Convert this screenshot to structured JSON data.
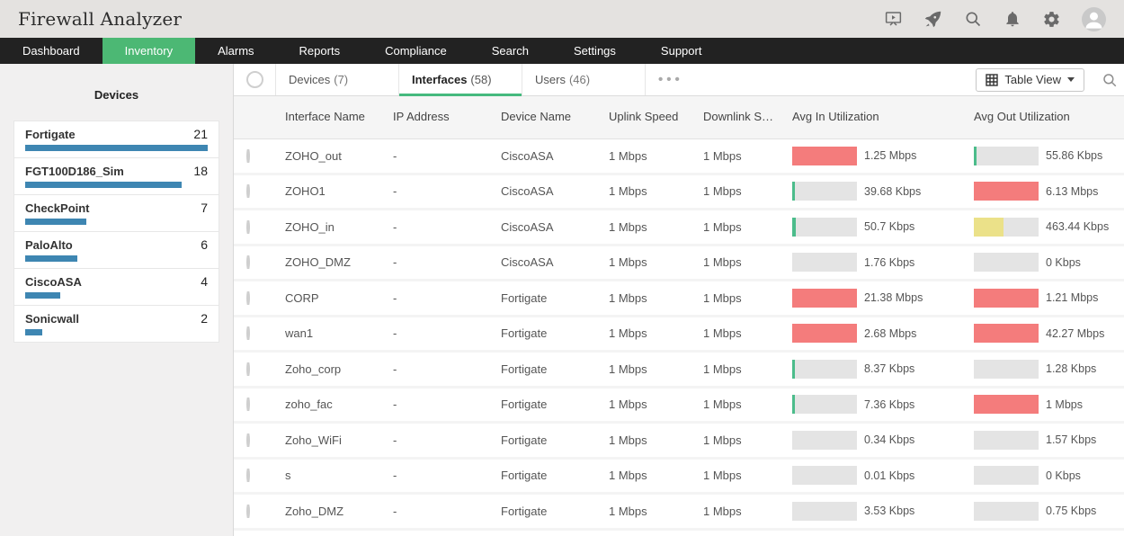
{
  "header": {
    "title": "Firewall Analyzer",
    "icons": [
      "presentation-icon",
      "rocket-icon",
      "search-icon",
      "bell-icon",
      "gear-icon",
      "avatar"
    ]
  },
  "nav": {
    "items": [
      {
        "label": "Dashboard",
        "active": false
      },
      {
        "label": "Inventory",
        "active": true
      },
      {
        "label": "Alarms",
        "active": false
      },
      {
        "label": "Reports",
        "active": false
      },
      {
        "label": "Compliance",
        "active": false
      },
      {
        "label": "Search",
        "active": false
      },
      {
        "label": "Settings",
        "active": false
      },
      {
        "label": "Support",
        "active": false
      }
    ]
  },
  "sidebar": {
    "title": "Devices",
    "max_count": 21,
    "items": [
      {
        "name": "Fortigate",
        "count": 21
      },
      {
        "name": "FGT100D186_Sim",
        "count": 18
      },
      {
        "name": "CheckPoint",
        "count": 7
      },
      {
        "name": "PaloAlto",
        "count": 6
      },
      {
        "name": "CiscoASA",
        "count": 4
      },
      {
        "name": "Sonicwall",
        "count": 2
      }
    ]
  },
  "tabbar": {
    "tabs": [
      {
        "label": "Devices",
        "count": "(7)",
        "active": false
      },
      {
        "label": "Interfaces",
        "count": "(58)",
        "active": true
      },
      {
        "label": "Users",
        "count": "(46)",
        "active": false
      }
    ],
    "more_label": "•••",
    "view_button": "Table View"
  },
  "table": {
    "columns": [
      "Interface Name",
      "IP Address",
      "Device Name",
      "Uplink Speed",
      "Downlink Speed",
      "Avg In Utilization",
      "Avg Out Utilization"
    ],
    "rows": [
      {
        "name": "ZOHO_out",
        "ip": "-",
        "device": "CiscoASA",
        "uplink": "1 Mbps",
        "downlink": "1 Mbps",
        "avg_in": {
          "value": "1.25 Mbps",
          "color": "red",
          "pct": 100
        },
        "avg_out": {
          "value": "55.86 Kbps",
          "color": "green",
          "pct": 4
        }
      },
      {
        "name": "ZOHO1",
        "ip": "-",
        "device": "CiscoASA",
        "uplink": "1 Mbps",
        "downlink": "1 Mbps",
        "avg_in": {
          "value": "39.68 Kbps",
          "color": "green",
          "pct": 4
        },
        "avg_out": {
          "value": "6.13 Mbps",
          "color": "red",
          "pct": 100
        }
      },
      {
        "name": "ZOHO_in",
        "ip": "-",
        "device": "CiscoASA",
        "uplink": "1 Mbps",
        "downlink": "1 Mbps",
        "avg_in": {
          "value": "50.7 Kbps",
          "color": "green",
          "pct": 5
        },
        "avg_out": {
          "value": "463.44 Kbps",
          "color": "yellow",
          "pct": 46
        }
      },
      {
        "name": "ZOHO_DMZ",
        "ip": "-",
        "device": "CiscoASA",
        "uplink": "1 Mbps",
        "downlink": "1 Mbps",
        "avg_in": {
          "value": "1.76 Kbps",
          "color": "none",
          "pct": 0
        },
        "avg_out": {
          "value": "0 Kbps",
          "color": "none",
          "pct": 0
        }
      },
      {
        "name": "CORP",
        "ip": "-",
        "device": "Fortigate",
        "uplink": "1 Mbps",
        "downlink": "1 Mbps",
        "avg_in": {
          "value": "21.38 Mbps",
          "color": "red",
          "pct": 100
        },
        "avg_out": {
          "value": "1.21 Mbps",
          "color": "red",
          "pct": 100
        }
      },
      {
        "name": "wan1",
        "ip": "-",
        "device": "Fortigate",
        "uplink": "1 Mbps",
        "downlink": "1 Mbps",
        "avg_in": {
          "value": "2.68 Mbps",
          "color": "red",
          "pct": 100
        },
        "avg_out": {
          "value": "42.27 Mbps",
          "color": "red",
          "pct": 100
        }
      },
      {
        "name": "Zoho_corp",
        "ip": "-",
        "device": "Fortigate",
        "uplink": "1 Mbps",
        "downlink": "1 Mbps",
        "avg_in": {
          "value": "8.37 Kbps",
          "color": "green",
          "pct": 3
        },
        "avg_out": {
          "value": "1.28 Kbps",
          "color": "none",
          "pct": 0
        }
      },
      {
        "name": "zoho_fac",
        "ip": "-",
        "device": "Fortigate",
        "uplink": "1 Mbps",
        "downlink": "1 Mbps",
        "avg_in": {
          "value": "7.36 Kbps",
          "color": "green",
          "pct": 3
        },
        "avg_out": {
          "value": "1 Mbps",
          "color": "red",
          "pct": 100
        }
      },
      {
        "name": "Zoho_WiFi",
        "ip": "-",
        "device": "Fortigate",
        "uplink": "1 Mbps",
        "downlink": "1 Mbps",
        "avg_in": {
          "value": "0.34 Kbps",
          "color": "none",
          "pct": 0
        },
        "avg_out": {
          "value": "1.57 Kbps",
          "color": "none",
          "pct": 0
        }
      },
      {
        "name": "s",
        "ip": "-",
        "device": "Fortigate",
        "uplink": "1 Mbps",
        "downlink": "1 Mbps",
        "avg_in": {
          "value": "0.01 Kbps",
          "color": "none",
          "pct": 0
        },
        "avg_out": {
          "value": "0 Kbps",
          "color": "none",
          "pct": 0
        }
      },
      {
        "name": "Zoho_DMZ",
        "ip": "-",
        "device": "Fortigate",
        "uplink": "1 Mbps",
        "downlink": "1 Mbps",
        "avg_in": {
          "value": "3.53 Kbps",
          "color": "none",
          "pct": 0
        },
        "avg_out": {
          "value": "0.75 Kbps",
          "color": "none",
          "pct": 0
        }
      }
    ]
  },
  "colors": {
    "accent_green": "#4cb874",
    "tab_underline_green": "#45b97e",
    "bar_red": "#f47c7c",
    "bar_yellow": "#ebe189",
    "bar_green": "#4cbc8b",
    "sidebar_bar_blue": "#3e86b2",
    "nav_bg": "#222222",
    "header_bg": "#e4e2e0"
  }
}
